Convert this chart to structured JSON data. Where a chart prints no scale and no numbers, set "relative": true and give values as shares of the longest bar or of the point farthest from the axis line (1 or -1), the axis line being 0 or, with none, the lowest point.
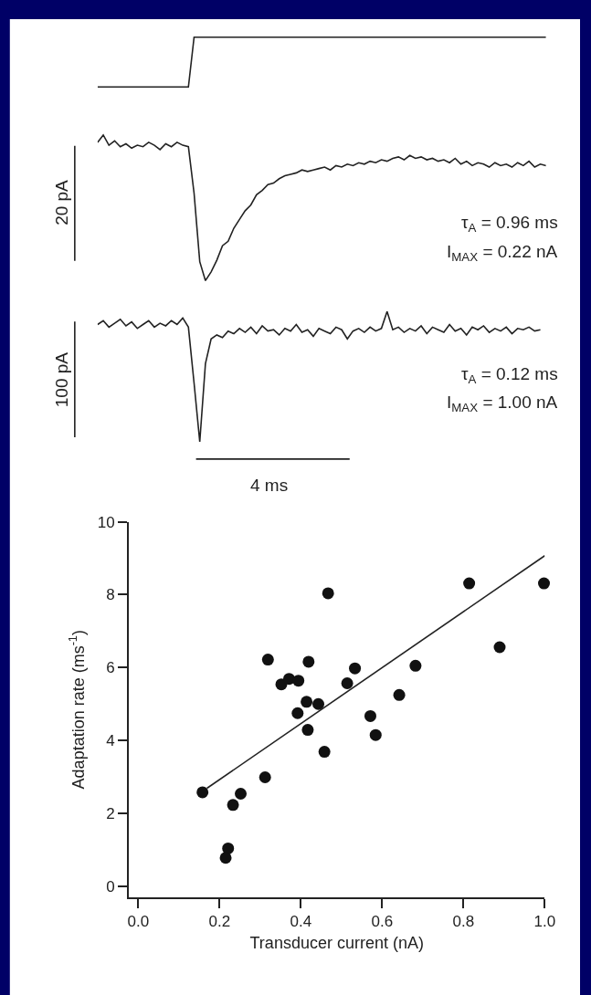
{
  "chart_data": [
    {
      "type": "line",
      "relative": true,
      "categories": [
        null,
        null,
        null,
        null,
        null,
        null,
        null,
        null,
        null,
        null,
        null,
        null,
        null,
        null,
        null,
        null,
        null,
        null,
        null,
        null,
        null,
        null,
        null,
        null,
        null,
        null,
        null,
        null,
        null,
        null,
        null,
        null,
        null,
        null,
        null,
        null,
        null,
        null,
        null,
        null,
        null,
        null,
        null,
        null,
        null,
        null,
        null,
        null,
        null,
        null,
        null,
        null,
        null,
        null,
        null,
        null,
        null,
        null,
        null,
        null,
        null,
        null,
        null,
        null,
        null,
        null,
        null,
        null,
        null,
        null,
        null,
        null,
        null,
        null,
        null,
        null,
        null,
        null,
        null,
        null
      ],
      "series": [
        {
          "color": "#222222",
          "values": [
            0,
            0,
            0,
            0,
            0,
            0,
            0,
            0,
            0,
            0,
            0,
            0,
            0,
            0,
            0,
            0,
            0,
            1,
            1,
            1,
            1,
            1,
            1,
            1,
            1,
            1,
            1,
            1,
            1,
            1,
            1,
            1,
            1,
            1,
            1,
            1,
            1,
            1,
            1,
            1,
            1,
            1,
            1,
            1,
            1,
            1,
            1,
            1,
            1,
            1,
            1,
            1,
            1,
            1,
            1,
            1,
            1,
            1,
            1,
            1,
            1,
            1,
            1,
            1,
            1,
            1,
            1,
            1,
            1,
            1,
            1,
            1,
            1,
            1,
            1,
            1,
            1,
            1,
            1,
            1
          ]
        }
      ],
      "marker": "none"
    },
    {
      "type": "line",
      "relative": true,
      "categories": [
        null,
        null,
        null,
        null,
        null,
        null,
        null,
        null,
        null,
        null,
        null,
        null,
        null,
        null,
        null,
        null,
        null,
        null,
        null,
        null,
        null,
        null,
        null,
        null,
        null,
        null,
        null,
        null,
        null,
        null,
        null,
        null,
        null,
        null,
        null,
        null,
        null,
        null,
        null,
        null,
        null,
        null,
        null,
        null,
        null,
        null,
        null,
        null,
        null,
        null,
        null,
        null,
        null,
        null,
        null,
        null,
        null,
        null,
        null,
        null,
        null,
        null,
        null,
        null,
        null,
        null,
        null,
        null,
        null,
        null,
        null,
        null,
        null,
        null,
        null,
        null,
        null,
        null,
        null,
        null
      ],
      "series": [
        {
          "color": "#222222",
          "values": [
            0.95,
            1.0,
            0.93,
            0.96,
            0.92,
            0.94,
            0.91,
            0.93,
            0.92,
            0.95,
            0.93,
            0.9,
            0.94,
            0.92,
            0.95,
            0.93,
            0.92,
            0.6,
            0.13,
            0.0,
            0.06,
            0.14,
            0.24,
            0.27,
            0.36,
            0.42,
            0.48,
            0.52,
            0.59,
            0.62,
            0.66,
            0.67,
            0.7,
            0.72,
            0.73,
            0.74,
            0.76,
            0.75,
            0.76,
            0.77,
            0.78,
            0.76,
            0.79,
            0.78,
            0.8,
            0.79,
            0.81,
            0.8,
            0.82,
            0.81,
            0.83,
            0.82,
            0.84,
            0.85,
            0.83,
            0.86,
            0.84,
            0.85,
            0.83,
            0.84,
            0.82,
            0.83,
            0.81,
            0.84,
            0.8,
            0.82,
            0.79,
            0.81,
            0.8,
            0.78,
            0.81,
            0.79,
            0.8,
            0.78,
            0.81,
            0.79,
            0.82,
            0.78,
            0.8,
            0.79
          ]
        }
      ],
      "annotations": [
        "20 pA",
        "τ$_{A}$ = 0.96 ms",
        "I$_{MAX}$ = 0.22 nA"
      ],
      "marker": "none"
    },
    {
      "type": "line",
      "relative": true,
      "categories": [
        null,
        null,
        null,
        null,
        null,
        null,
        null,
        null,
        null,
        null,
        null,
        null,
        null,
        null,
        null,
        null,
        null,
        null,
        null,
        null,
        null,
        null,
        null,
        null,
        null,
        null,
        null,
        null,
        null,
        null,
        null,
        null,
        null,
        null,
        null,
        null,
        null,
        null,
        null,
        null,
        null,
        null,
        null,
        null,
        null,
        null,
        null,
        null,
        null,
        null,
        null,
        null,
        null,
        null,
        null,
        null,
        null,
        null,
        null,
        null,
        null,
        null,
        null,
        null,
        null,
        null,
        null,
        null,
        null,
        null,
        null,
        null,
        null,
        null,
        null,
        null,
        null,
        null,
        null,
        null
      ],
      "series": [
        {
          "color": "#222222",
          "values": [
            0.9,
            0.93,
            0.88,
            0.91,
            0.94,
            0.89,
            0.92,
            0.87,
            0.9,
            0.93,
            0.88,
            0.91,
            0.89,
            0.93,
            0.9,
            0.95,
            0.88,
            0.45,
            0.0,
            0.6,
            0.79,
            0.82,
            0.8,
            0.85,
            0.83,
            0.87,
            0.84,
            0.88,
            0.83,
            0.89,
            0.85,
            0.86,
            0.82,
            0.87,
            0.85,
            0.9,
            0.84,
            0.86,
            0.81,
            0.87,
            0.85,
            0.83,
            0.88,
            0.86,
            0.79,
            0.85,
            0.87,
            0.84,
            0.88,
            0.85,
            0.87,
            1.0,
            0.86,
            0.88,
            0.84,
            0.87,
            0.85,
            0.89,
            0.83,
            0.88,
            0.86,
            0.84,
            0.9,
            0.85,
            0.87,
            0.82,
            0.88,
            0.86,
            0.89,
            0.84,
            0.87,
            0.85,
            0.88,
            0.83,
            0.87,
            0.86,
            0.88,
            0.85,
            0.86,
            null
          ]
        }
      ],
      "annotations": [
        "100 pA",
        "τ$_{A}$ = 0.12 ms",
        "I$_{MAX}$ = 1.00 nA",
        "4 ms"
      ],
      "marker": "none"
    },
    {
      "type": "scatter",
      "xlabel": "Transducer current (nA)",
      "ylabel": "Adaptation rate (ms$^{-1}$)",
      "series": [
        {
          "type": "scatter",
          "color": "#111111",
          "x": [
            0.158,
            0.233,
            0.252,
            0.221,
            0.215,
            0.312,
            0.319,
            0.352,
            0.371,
            0.394,
            0.392,
            0.414,
            0.419,
            0.417,
            0.443,
            0.458,
            0.467,
            0.514,
            0.533,
            0.571,
            0.584,
            0.642,
            0.682,
            0.814,
            0.889,
            0.998
          ],
          "values": [
            2.58,
            2.23,
            2.54,
            1.04,
            0.78,
            2.99,
            6.22,
            5.54,
            5.69,
            5.64,
            4.75,
            5.06,
            6.16,
            4.29,
            5.0,
            3.69,
            8.04,
            5.57,
            5.98,
            4.67,
            4.15,
            5.25,
            6.05,
            8.31,
            6.56,
            8.31
          ],
          "marker": "circle"
        },
        {
          "type": "line",
          "color": "#222222",
          "x": [
            0.169,
            1.0
          ],
          "values": [
            2.69,
            9.07
          ],
          "marker": "none"
        }
      ],
      "xlim": [
        -0.023,
        1.0
      ],
      "ylim": [
        -0.3,
        10
      ],
      "xticks": [
        {
          "value": 0,
          "label": "0.0"
        },
        {
          "value": 0.2,
          "label": "0.2"
        },
        {
          "value": 0.4,
          "label": "0.4"
        },
        {
          "value": 0.6,
          "label": "0.6"
        },
        {
          "value": 0.8,
          "label": "0.8"
        },
        {
          "value": 1.0,
          "label": "1.0"
        }
      ],
      "yticks": [
        0,
        2,
        4,
        6,
        8,
        10
      ]
    }
  ]
}
